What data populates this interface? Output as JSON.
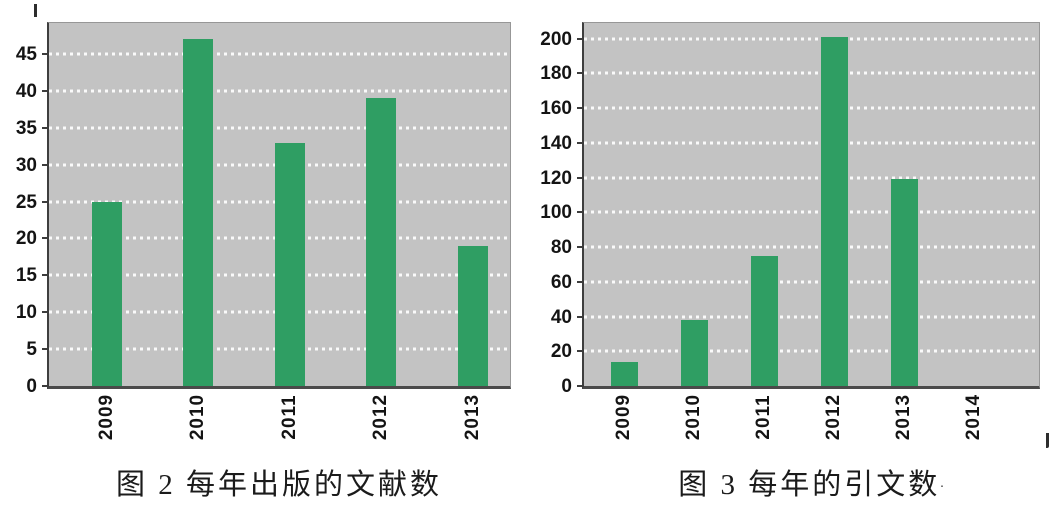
{
  "chart_data": [
    {
      "type": "bar",
      "title": "图 2  每年出版的文献数",
      "categories": [
        "2009",
        "2010",
        "2011",
        "2012",
        "2013"
      ],
      "values": [
        25,
        47,
        33,
        39,
        19
      ],
      "xlabel": "",
      "ylabel": "",
      "y_ticks": [
        0,
        5,
        10,
        15,
        20,
        25,
        30,
        35,
        40,
        45
      ],
      "ylim": [
        0,
        49.2
      ],
      "grid": "horizontal-dashed",
      "legend": "none",
      "bar_color": "#2f9e63",
      "plot_background": "#c3c3c3",
      "grid_color": "#ffffff"
    },
    {
      "type": "bar",
      "title": "图 3  每年的引文数",
      "trailing_mark": ".",
      "categories": [
        "2009",
        "2010",
        "2011",
        "2012",
        "2013",
        "2014"
      ],
      "values": [
        14,
        38,
        75,
        201,
        119,
        0
      ],
      "xlabel": "",
      "ylabel": "",
      "y_ticks": [
        0,
        20,
        40,
        60,
        80,
        100,
        120,
        140,
        160,
        180,
        200
      ],
      "ylim": [
        0,
        209
      ],
      "grid": "horizontal-dashed",
      "legend": "none",
      "bar_color": "#2f9e63",
      "plot_background": "#c3c3c3",
      "grid_color": "#ffffff"
    }
  ]
}
